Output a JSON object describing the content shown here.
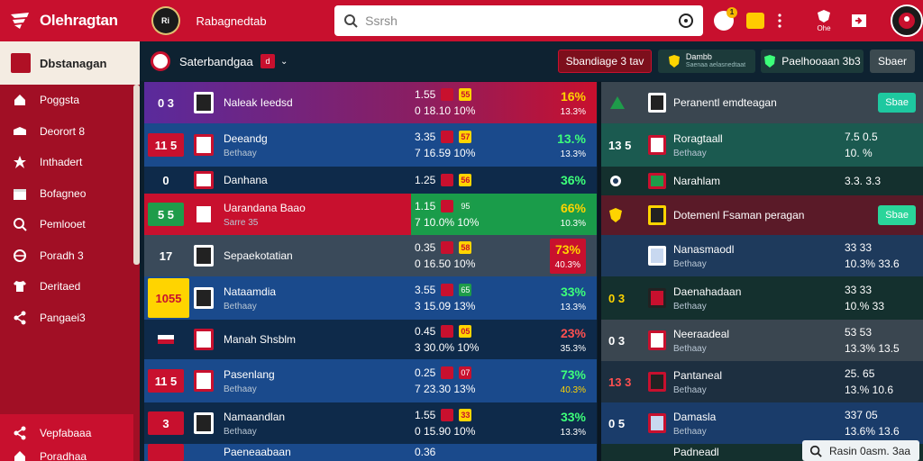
{
  "app": {
    "brand": "Olehragtan",
    "top_title": "Rabagnedtab",
    "crest_text": "Ri",
    "accent": "#c8102e"
  },
  "search": {
    "placeholder": "Ssrsh"
  },
  "top_icons": {
    "notification_count": "1",
    "profile_label": "Ohe"
  },
  "sidebar": {
    "header": "Dbstanagan",
    "items": [
      {
        "label": "Poggsta",
        "icon": "home-icon"
      },
      {
        "label": "Deorort 8",
        "icon": "stadium-icon"
      },
      {
        "label": "Inthadert",
        "icon": "star-icon"
      },
      {
        "label": "Bofagneo",
        "icon": "calendar-icon"
      },
      {
        "label": "Pemlooet",
        "icon": "search-icon"
      },
      {
        "label": "Poradh 3",
        "icon": "sport-icon"
      },
      {
        "label": "Deritaed",
        "icon": "shirt-icon"
      },
      {
        "label": "Pangaei3",
        "icon": "share-icon"
      }
    ],
    "bottom_items": [
      {
        "label": "Vepfabaaa",
        "icon": "share-icon"
      },
      {
        "label": "Poradhaa",
        "icon": "home-icon"
      }
    ]
  },
  "subheader": {
    "title": "Saterbandgaa",
    "badge": "d",
    "buttons": [
      "Sbandiage 3 tav",
      "Dambb",
      "Paelhooaan 3b3",
      "Sbaer"
    ],
    "button_sub": "Saenaa aelasnedtaat"
  },
  "left_matches": [
    {
      "tag": "0 3",
      "name": "Naleak Ieedsd",
      "sub": "",
      "odds": [
        "1.55",
        "0 18.10 10%"
      ],
      "box": "55",
      "pct_hi": "16%",
      "pct_lo": "13.3%"
    },
    {
      "tag": "11 5",
      "name": "Deeandg",
      "sub": "Bethaay",
      "odds": [
        "3.35",
        "7 16.59 10%"
      ],
      "box": "57",
      "pct_hi": "13.%",
      "pct_lo": "13.3%"
    },
    {
      "tag": "0",
      "name": "Danhana",
      "sub": "",
      "odds": [
        "1.25",
        ""
      ],
      "box": "56",
      "pct_hi": "36%",
      "pct_lo": ""
    },
    {
      "tag": "5 5",
      "name": "Uarandana Baao",
      "sub": "Sarre 35",
      "odds": [
        "1.15",
        "7 10.0% 10%"
      ],
      "box": "95",
      "pct_hi": "66%",
      "pct_lo": "10.3%"
    },
    {
      "tag": "17",
      "name": "Sepaekotatian",
      "sub": "",
      "odds": [
        "0.35",
        "0 16.50 10%"
      ],
      "box": "58",
      "pct_hi": "73%",
      "pct_lo": "40.3%"
    },
    {
      "tag": "1055",
      "name": "Nataamdia",
      "sub": "Bethaay",
      "odds": [
        "3.55",
        "3 15.09 13%"
      ],
      "box": "65",
      "pct_hi": "33%",
      "pct_lo": "13.3%"
    },
    {
      "tag": "",
      "name": "Manah Shsblm",
      "sub": "",
      "odds": [
        "0.45",
        "3 30.0% 10%"
      ],
      "box": "05",
      "pct_hi": "23%",
      "pct_lo": "35.3%"
    },
    {
      "tag": "11 5",
      "name": "Pasenlang",
      "sub": "Bethaay",
      "odds": [
        "0.25",
        "7 23.30 13%"
      ],
      "box": "07",
      "pct_hi": "73%",
      "pct_lo": "40.3%"
    },
    {
      "tag": "3",
      "name": "Namaandlan",
      "sub": "Bethaay",
      "odds": [
        "1.55",
        "0 15.90 10%"
      ],
      "box": "33",
      "pct_hi": "33%",
      "pct_lo": "13.3%"
    },
    {
      "tag": "",
      "name": "Paeneaabaan",
      "sub": "",
      "odds": [
        "0.36",
        ""
      ],
      "box": "",
      "pct_hi": "",
      "pct_lo": ""
    }
  ],
  "right_matches": [
    {
      "tag": "",
      "name": "Peranentl emdteagan",
      "sub": "",
      "v1": "",
      "v2": "",
      "btn": "Sbae"
    },
    {
      "tag": "13 5",
      "name": "Roragtaall",
      "sub": "Bethaay",
      "v1": "7.5 0.5",
      "v2": "10. %",
      "btn": ""
    },
    {
      "tag": "",
      "name": "Narahlam",
      "sub": "",
      "v1": "3.3. 3.3",
      "v2": "",
      "btn": ""
    },
    {
      "tag": "",
      "name": "Dotemenl Fsaman peragan",
      "sub": "",
      "v1": "",
      "v2": "",
      "btn": "Sbae"
    },
    {
      "tag": "",
      "name": "Nanasmaodl",
      "sub": "Bethaay",
      "v1": "33 33",
      "v2": "10.3% 33.6",
      "btn": ""
    },
    {
      "tag": "0 3",
      "name": "Daenahadaan",
      "sub": "Bethaay",
      "v1": "33 33",
      "v2": "10.% 33",
      "btn": ""
    },
    {
      "tag": "0 3",
      "name": "Neeraadeal",
      "sub": "Bethaay",
      "v1": "53 53",
      "v2": "13.3% 13.5",
      "btn": ""
    },
    {
      "tag": "13 3",
      "name": "Pantaneal",
      "sub": "Bethaay",
      "v1": "25. 65",
      "v2": "13.% 10.6",
      "btn": ""
    },
    {
      "tag": "0 5",
      "name": "Damasla",
      "sub": "Bethaay",
      "v1": "337 05",
      "v2": "13.6% 13.6",
      "btn": ""
    },
    {
      "tag": "",
      "name": "Padneadl",
      "sub": "",
      "v1": "",
      "v2": "",
      "btn": ""
    }
  ],
  "floating_card": {
    "label": "Rasin 0asm. 3aa"
  }
}
